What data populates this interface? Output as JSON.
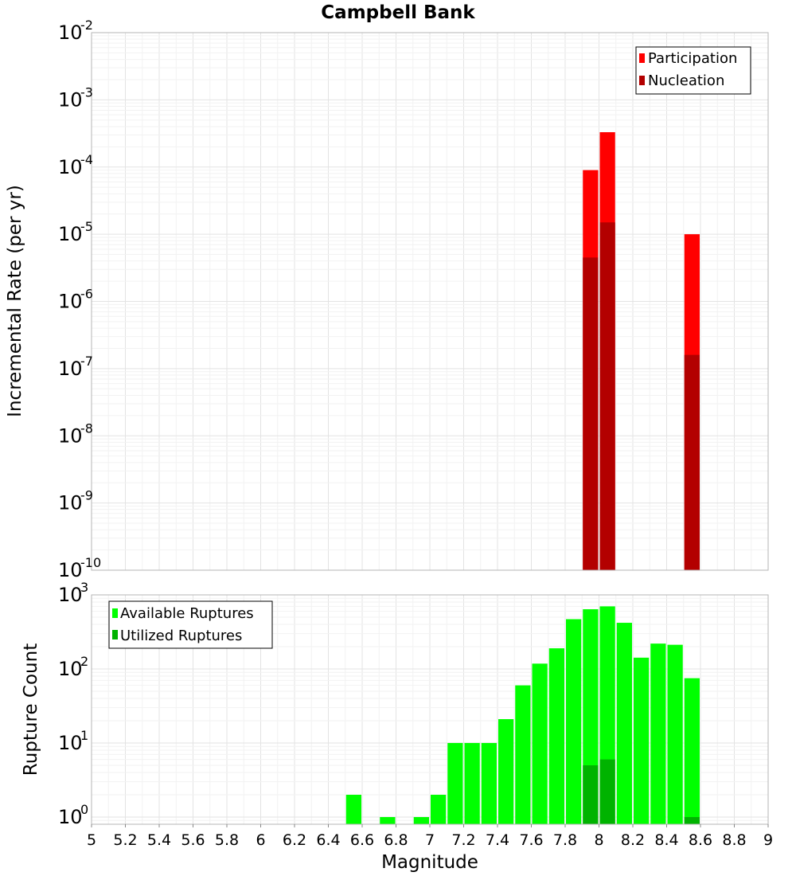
{
  "chart_data": [
    {
      "type": "bar",
      "title": "Campbell Bank",
      "xlabel": "",
      "ylabel": "Incremental Rate (per yr)",
      "yscale": "log",
      "ylim": [
        1e-10,
        0.01
      ],
      "xlim": [
        5,
        9
      ],
      "grid": true,
      "legend_position": "top-right",
      "bar_width": 0.1,
      "x": [
        7.95,
        8.05,
        8.55
      ],
      "series": [
        {
          "name": "Participation",
          "color": "#ff0000",
          "values": [
            9e-05,
            0.00033,
            1e-05
          ]
        },
        {
          "name": "Nucleation",
          "color": "#b30000",
          "values": [
            4.5e-06,
            1.5e-05,
            1.6e-07
          ]
        }
      ]
    },
    {
      "type": "bar",
      "xlabel": "Magnitude",
      "ylabel": "Rupture Count",
      "yscale": "log",
      "ylim": [
        0.8,
        1000
      ],
      "xlim": [
        5,
        9
      ],
      "grid": true,
      "legend_position": "top-left",
      "bar_width": 0.1,
      "x_ticks": [
        "5",
        "5.2",
        "5.4",
        "5.6",
        "5.8",
        "6",
        "6.2",
        "6.4",
        "6.6",
        "6.8",
        "7",
        "7.2",
        "7.4",
        "7.6",
        "7.8",
        "8",
        "8.2",
        "8.4",
        "8.6",
        "8.8",
        "9"
      ],
      "series": [
        {
          "name": "Available Ruptures",
          "color": "#00ff00",
          "x": [
            6.55,
            6.75,
            6.95,
            7.05,
            7.15,
            7.25,
            7.35,
            7.45,
            7.55,
            7.65,
            7.75,
            7.85,
            7.95,
            8.05,
            8.15,
            8.25,
            8.35,
            8.45,
            8.55
          ],
          "values": [
            2,
            1,
            1,
            2,
            10,
            10,
            10,
            21,
            60,
            118,
            190,
            470,
            640,
            700,
            420,
            142,
            220,
            212,
            75
          ]
        },
        {
          "name": "Utilized Ruptures",
          "color": "#00b300",
          "x": [
            7.95,
            8.05,
            8.55
          ],
          "values": [
            5,
            6,
            1
          ]
        }
      ]
    }
  ]
}
